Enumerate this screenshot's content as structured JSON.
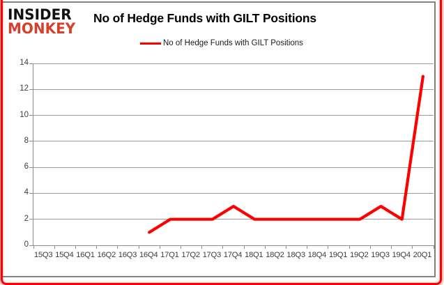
{
  "brand": {
    "line1": "INSIDER",
    "line2": "MONKEY"
  },
  "title": "No of Hedge Funds with GILT Positions",
  "legend": {
    "label": "No of Hedge Funds with GILT Positions",
    "color": "#ff0000"
  },
  "colors": {
    "series_red": "#ff0000",
    "logo_red": "#d6402c",
    "grid_gray": "#9a9a9a",
    "axis_gray": "#8c8c8c",
    "chart_border": "#808080",
    "frame_red": "#ff0000",
    "text_dark": "#3d3d3d"
  },
  "chart_data": {
    "type": "line",
    "title": "No of Hedge Funds with GILT Positions",
    "categories": [
      "15Q3",
      "15Q4",
      "16Q1",
      "16Q2",
      "16Q3",
      "16Q4",
      "17Q1",
      "17Q2",
      "17Q3",
      "17Q4",
      "18Q1",
      "18Q2",
      "18Q3",
      "18Q4",
      "19Q1",
      "19Q2",
      "19Q3",
      "19Q4",
      "20Q1"
    ],
    "series": [
      {
        "name": "No of Hedge Funds with GILT Positions",
        "color": "#ff0000",
        "values": [
          null,
          null,
          null,
          null,
          null,
          1,
          2,
          2,
          2,
          3,
          2,
          2,
          2,
          2,
          2,
          2,
          3,
          2,
          13
        ]
      }
    ],
    "xlabel": "",
    "ylabel": "",
    "ylim": [
      0,
      14
    ],
    "yticks": [
      0,
      2,
      4,
      6,
      8,
      10,
      12,
      14
    ],
    "grid": true,
    "legend_position": "top-center"
  }
}
